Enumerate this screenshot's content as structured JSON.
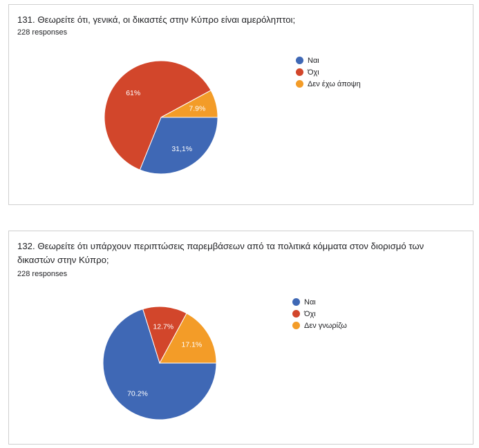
{
  "charts": [
    {
      "title": "131. Θεωρείτε ότι, γενικά, οι δικαστές στην Κύπρο είναι αμερόληπτοι;",
      "responses": "228 responses"
    },
    {
      "title": "132. Θεωρείτε ότι υπάρχουν περιπτώσεις παρεμβάσεων από τα πολιτικά κόμματα στον διορισμό των δικαστών στην Κύπρο;",
      "responses": "228 responses"
    }
  ],
  "chart_data": [
    {
      "type": "pie",
      "title": "131. Θεωρείτε ότι, γενικά, οι δικαστές στην Κύπρο είναι αμερόληπτοι;",
      "categories": [
        "Ναι",
        "Όχι",
        "Δεν έχω άποψη"
      ],
      "values": [
        31.1,
        61,
        7.9
      ],
      "value_labels": [
        "31,1%",
        "61%",
        "7.9%"
      ],
      "colors": [
        "#3f68b5",
        "#d2462b",
        "#f39c28"
      ],
      "legend": "right"
    },
    {
      "type": "pie",
      "title": "132. Θεωρείτε ότι υπάρχουν περιπτώσεις παρεμβάσεων από τα πολιτικά κόμματα στον διορισμό των δικαστών στην Κύπρο;",
      "categories": [
        "Ναι",
        "Όχι",
        "Δεν γνωρίζω"
      ],
      "values": [
        70.2,
        12.7,
        17.1
      ],
      "value_labels": [
        "70.2%",
        "12.7%",
        "17.1%"
      ],
      "colors": [
        "#3f68b5",
        "#d2462b",
        "#f39c28"
      ],
      "legend": "right"
    }
  ]
}
